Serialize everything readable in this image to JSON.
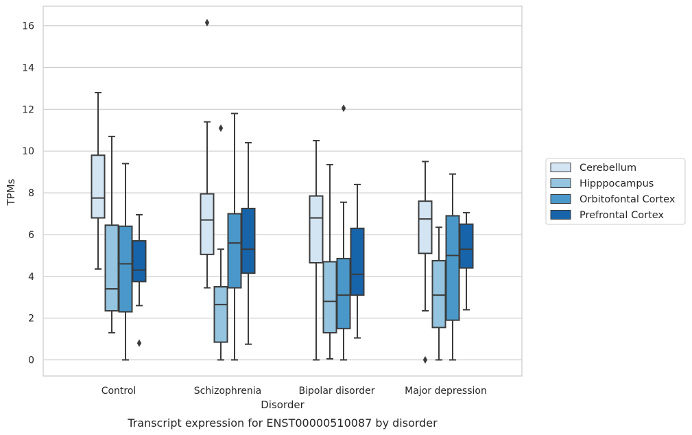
{
  "caption": "Transcript expression for ENST00000510087 by disorder",
  "chart_data": {
    "type": "box",
    "xlabel": "Disorder",
    "ylabel": "TPMs",
    "ylim": [
      -0.75,
      16.9
    ],
    "yticks": [
      0,
      2,
      4,
      6,
      8,
      10,
      12,
      14,
      16
    ],
    "grid": true,
    "legend_position": "right",
    "categories": [
      "Control",
      "Schizophrenia",
      "Bipolar disorder",
      "Major depression"
    ],
    "series": [
      {
        "name": "Cerebellum",
        "color": "#d3e4f3",
        "boxes": [
          {
            "whisker_low": 4.35,
            "q1": 6.8,
            "median": 7.75,
            "q3": 9.8,
            "whisker_high": 12.8,
            "outliers": []
          },
          {
            "whisker_low": 3.45,
            "q1": 5.05,
            "median": 6.7,
            "q3": 7.95,
            "whisker_high": 11.4,
            "outliers": [
              16.15
            ]
          },
          {
            "whisker_low": 0.0,
            "q1": 4.65,
            "median": 6.8,
            "q3": 7.85,
            "whisker_high": 10.5,
            "outliers": []
          },
          {
            "whisker_low": 2.35,
            "q1": 5.1,
            "median": 6.75,
            "q3": 7.6,
            "whisker_high": 9.5,
            "outliers": [
              0.0
            ]
          }
        ]
      },
      {
        "name": "Hipppocampus",
        "color": "#94c4df",
        "boxes": [
          {
            "whisker_low": 1.3,
            "q1": 2.35,
            "median": 3.4,
            "q3": 6.45,
            "whisker_high": 10.7,
            "outliers": []
          },
          {
            "whisker_low": 0.0,
            "q1": 0.85,
            "median": 2.65,
            "q3": 3.5,
            "whisker_high": 5.3,
            "outliers": [
              11.1
            ]
          },
          {
            "whisker_low": 0.05,
            "q1": 1.3,
            "median": 2.8,
            "q3": 4.7,
            "whisker_high": 9.35,
            "outliers": []
          },
          {
            "whisker_low": 0.0,
            "q1": 1.55,
            "median": 3.1,
            "q3": 4.75,
            "whisker_high": 6.35,
            "outliers": []
          }
        ]
      },
      {
        "name": "Orbitofontal Cortex",
        "color": "#4a98c9",
        "boxes": [
          {
            "whisker_low": 0.0,
            "q1": 2.3,
            "median": 4.6,
            "q3": 6.4,
            "whisker_high": 9.4,
            "outliers": []
          },
          {
            "whisker_low": 0.0,
            "q1": 3.45,
            "median": 5.6,
            "q3": 7.0,
            "whisker_high": 11.8,
            "outliers": []
          },
          {
            "whisker_low": 0.0,
            "q1": 1.5,
            "median": 3.1,
            "q3": 4.85,
            "whisker_high": 7.55,
            "outliers": [
              12.05
            ]
          },
          {
            "whisker_low": 0.0,
            "q1": 1.9,
            "median": 5.0,
            "q3": 6.9,
            "whisker_high": 8.9,
            "outliers": []
          }
        ]
      },
      {
        "name": "Prefrontal Cortex",
        "color": "#1764ab",
        "boxes": [
          {
            "whisker_low": 2.6,
            "q1": 3.75,
            "median": 4.3,
            "q3": 5.7,
            "whisker_high": 6.95,
            "outliers": [
              0.8
            ]
          },
          {
            "whisker_low": 0.75,
            "q1": 4.15,
            "median": 5.3,
            "q3": 7.25,
            "whisker_high": 10.4,
            "outliers": []
          },
          {
            "whisker_low": 1.05,
            "q1": 3.1,
            "median": 4.1,
            "q3": 6.3,
            "whisker_high": 8.4,
            "outliers": []
          },
          {
            "whisker_low": 2.4,
            "q1": 4.4,
            "median": 5.3,
            "q3": 6.5,
            "whisker_high": 7.05,
            "outliers": []
          }
        ]
      }
    ]
  }
}
